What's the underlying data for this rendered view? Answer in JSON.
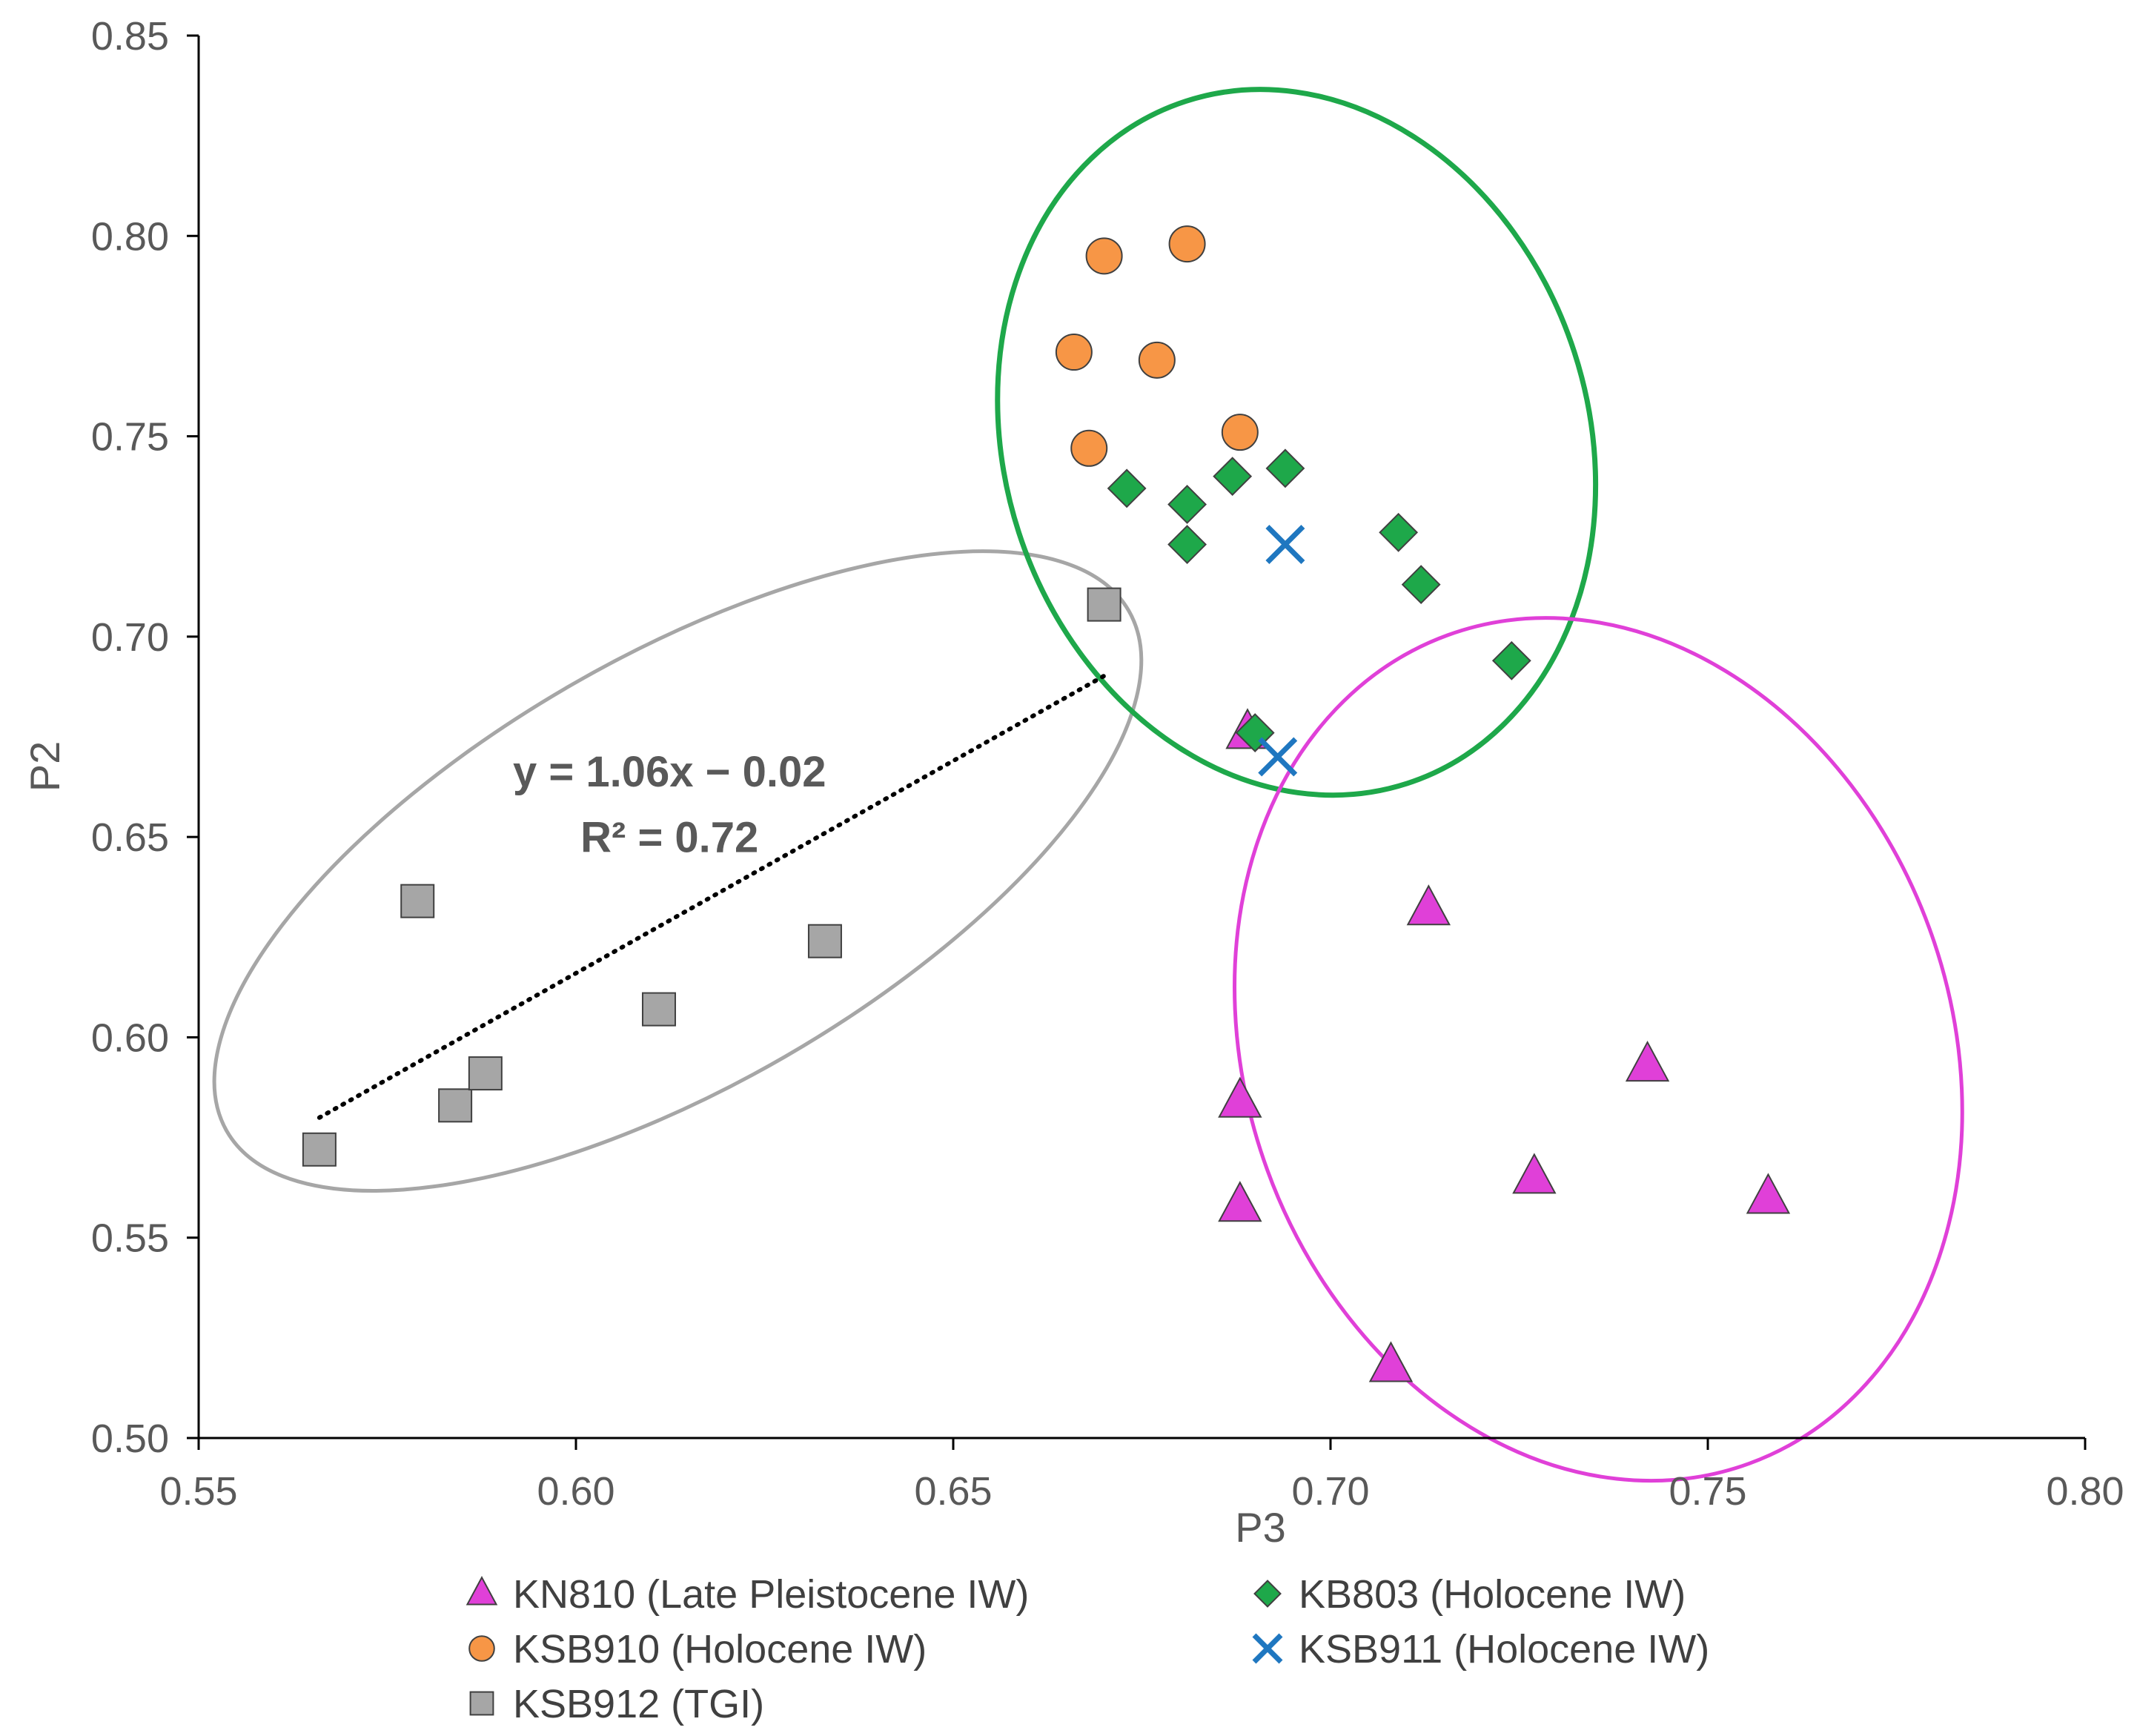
{
  "chart_data": {
    "type": "scatter",
    "title": "",
    "xlabel": "P3",
    "ylabel": "P2",
    "xlim": [
      0.55,
      0.8
    ],
    "ylim": [
      0.5,
      0.85
    ],
    "x_ticks": [
      "0.55",
      "0.60",
      "0.65",
      "0.70",
      "0.75",
      "0.80"
    ],
    "y_ticks": [
      "0.50",
      "0.55",
      "0.60",
      "0.65",
      "0.70",
      "0.75",
      "0.80",
      "0.85"
    ],
    "grid": false,
    "legend_position": "bottom",
    "series": [
      {
        "name": "KN810 (Late Pleistocene IW)",
        "marker": "triangle",
        "color": "#e040d8",
        "points": [
          [
            0.689,
            0.676
          ],
          [
            0.713,
            0.632
          ],
          [
            0.688,
            0.584
          ],
          [
            0.742,
            0.593
          ],
          [
            0.688,
            0.558
          ],
          [
            0.727,
            0.565
          ],
          [
            0.758,
            0.56
          ],
          [
            0.708,
            0.518
          ]
        ]
      },
      {
        "name": "KB803 (Holocene IW)",
        "marker": "diamond",
        "color": "#1ea84a",
        "points": [
          [
            0.673,
            0.737
          ],
          [
            0.681,
            0.733
          ],
          [
            0.687,
            0.74
          ],
          [
            0.694,
            0.742
          ],
          [
            0.681,
            0.723
          ],
          [
            0.709,
            0.726
          ],
          [
            0.712,
            0.713
          ],
          [
            0.724,
            0.694
          ],
          [
            0.69,
            0.676
          ]
        ]
      },
      {
        "name": "KSB910 (Holocene IW)",
        "marker": "circle",
        "color": "#f79646",
        "points": [
          [
            0.67,
            0.795
          ],
          [
            0.681,
            0.798
          ],
          [
            0.666,
            0.771
          ],
          [
            0.677,
            0.769
          ],
          [
            0.668,
            0.747
          ],
          [
            0.688,
            0.751
          ]
        ]
      },
      {
        "name": "KSB911 (Holocene IW)",
        "marker": "x",
        "color": "#1f77c0",
        "points": [
          [
            0.694,
            0.723
          ],
          [
            0.693,
            0.67
          ]
        ]
      },
      {
        "name": "KSB912 (TGI)",
        "marker": "square",
        "color": "#a6a6a6",
        "points": [
          [
            0.566,
            0.572
          ],
          [
            0.579,
            0.634
          ],
          [
            0.584,
            0.583
          ],
          [
            0.588,
            0.591
          ],
          [
            0.611,
            0.607
          ],
          [
            0.633,
            0.624
          ],
          [
            0.67,
            0.708
          ]
        ]
      }
    ],
    "trendline": {
      "series": "KSB912 (TGI)",
      "style": "dotted",
      "color": "#000000",
      "x_range": [
        0.566,
        0.67
      ],
      "slope": 1.06,
      "intercept": -0.02,
      "equation": "y = 1.06x − 0.02",
      "r_squared": "R² = 0.72"
    },
    "ellipses": [
      {
        "group": "KSB912 (TGI)",
        "color": "#a6a6a6",
        "center": [
          0.6135,
          0.6415
        ],
        "rx": 0.069,
        "ry": 0.0535,
        "rotation_deg": -30
      },
      {
        "group": "KB803 / KSB910 / KSB911 (Holocene IW)",
        "color": "#1ea84a",
        "center": [
          0.6955,
          0.7485
        ],
        "rx": 0.0387,
        "ry": 0.0895,
        "rotation_deg": -18
      },
      {
        "group": "KN810 (Late Pleistocene IW)",
        "color": "#e040d8",
        "center": [
          0.7355,
          0.597
        ],
        "rx": 0.0467,
        "ry": 0.11,
        "rotation_deg": -20
      }
    ]
  }
}
